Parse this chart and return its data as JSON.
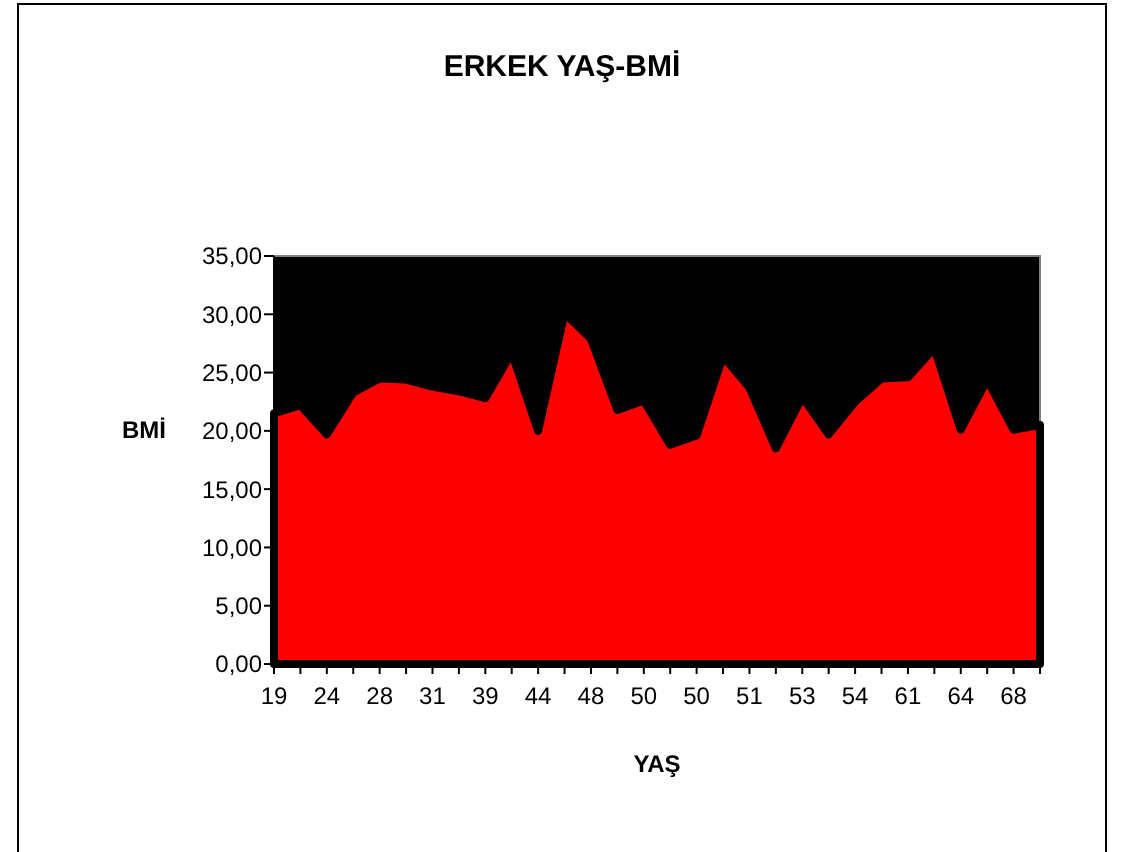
{
  "chart_data": {
    "type": "area",
    "title": "ERKEK YAŞ-BMİ",
    "xlabel": "YAŞ",
    "ylabel": "BMİ",
    "categories": [
      "19",
      null,
      "24",
      null,
      "28",
      null,
      "31",
      null,
      "39",
      null,
      "44",
      null,
      "48",
      null,
      "50",
      null,
      "50",
      null,
      "51",
      null,
      "53",
      null,
      "54",
      null,
      "61",
      null,
      "64",
      null,
      "68",
      null
    ],
    "series": [
      {
        "color": "#ff0000",
        "values": [
          21.5,
          22.2,
          19.7,
          23.3,
          24.5,
          24.4,
          23.8,
          23.4,
          22.8,
          26.7,
          20.0,
          30.1,
          27.9,
          21.8,
          22.6,
          18.8,
          19.6,
          26.4,
          23.7,
          18.5,
          22.9,
          19.7,
          22.5,
          24.5,
          24.6,
          27.1,
          20.1,
          24.4,
          20.1,
          20.5
        ]
      }
    ],
    "ylim": [
      0,
      35
    ],
    "yticks": [
      {
        "value": 0,
        "label": "0,00"
      },
      {
        "value": 5,
        "label": "5,00"
      },
      {
        "value": 10,
        "label": "10,00"
      },
      {
        "value": 15,
        "label": "15,00"
      },
      {
        "value": 20,
        "label": "20,00"
      },
      {
        "value": 25,
        "label": "25,00"
      },
      {
        "value": 30,
        "label": "30,00"
      },
      {
        "value": 35,
        "label": "35,00"
      }
    ],
    "grid": false
  }
}
